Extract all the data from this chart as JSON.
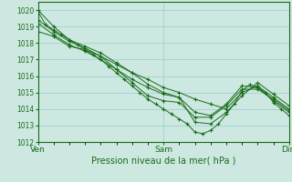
{
  "title": "Pression niveau de la mer( hPa )",
  "bg_color": "#cce8e0",
  "grid_color": "#99cccc",
  "line_color": "#1a6b1a",
  "ylim": [
    1012,
    1020.5
  ],
  "yticks": [
    1012,
    1013,
    1014,
    1015,
    1016,
    1017,
    1018,
    1019,
    1020
  ],
  "xlabel_ticks": [
    0,
    48,
    96
  ],
  "xlabel_labels": [
    "Ven",
    "Sam",
    "Dim"
  ],
  "xlim": [
    0,
    96
  ],
  "series": [
    [
      0,
      1019.9,
      3,
      1019.1,
      6,
      1018.8,
      9,
      1018.5,
      12,
      1018.2,
      15,
      1017.9,
      18,
      1017.6,
      21,
      1017.3,
      24,
      1017.0,
      27,
      1016.6,
      30,
      1016.2,
      33,
      1015.8,
      36,
      1015.4,
      39,
      1015.0,
      42,
      1014.6,
      45,
      1014.3,
      48,
      1014.0,
      51,
      1013.7,
      54,
      1013.4,
      57,
      1013.1,
      60,
      1012.6,
      63,
      1012.5,
      66,
      1012.7,
      69,
      1013.1,
      72,
      1013.7,
      75,
      1014.3,
      78,
      1015.1,
      81,
      1015.5,
      84,
      1015.3,
      87,
      1015.0,
      90,
      1014.4,
      93,
      1014.0,
      96,
      1013.6
    ],
    [
      0,
      1019.4,
      6,
      1018.7,
      12,
      1018.1,
      18,
      1017.7,
      24,
      1017.2,
      30,
      1016.7,
      36,
      1016.2,
      42,
      1015.8,
      48,
      1015.3,
      54,
      1015.0,
      60,
      1014.6,
      66,
      1014.3,
      72,
      1014.0,
      78,
      1015.0,
      84,
      1015.4,
      90,
      1014.7,
      96,
      1014.0
    ],
    [
      0,
      1019.2,
      6,
      1018.5,
      12,
      1017.9,
      18,
      1017.5,
      24,
      1017.0,
      30,
      1016.4,
      36,
      1015.8,
      42,
      1015.3,
      48,
      1014.9,
      54,
      1014.7,
      60,
      1013.2,
      66,
      1013.1,
      72,
      1013.8,
      78,
      1014.8,
      84,
      1015.6,
      90,
      1014.9,
      96,
      1014.2
    ],
    [
      0,
      1020.0,
      6,
      1019.0,
      12,
      1018.2,
      18,
      1017.8,
      24,
      1017.4,
      30,
      1016.8,
      36,
      1016.2,
      42,
      1015.5,
      48,
      1015.0,
      54,
      1014.7,
      60,
      1013.8,
      66,
      1013.6,
      72,
      1014.3,
      78,
      1015.4,
      84,
      1015.3,
      90,
      1014.5,
      96,
      1013.8
    ],
    [
      0,
      1018.7,
      6,
      1018.4,
      12,
      1017.8,
      18,
      1017.6,
      24,
      1017.2,
      30,
      1016.4,
      36,
      1015.6,
      42,
      1014.8,
      48,
      1014.5,
      54,
      1014.4,
      60,
      1013.5,
      66,
      1013.5,
      72,
      1014.2,
      78,
      1015.2,
      84,
      1015.2,
      90,
      1014.6,
      96,
      1013.9
    ]
  ]
}
